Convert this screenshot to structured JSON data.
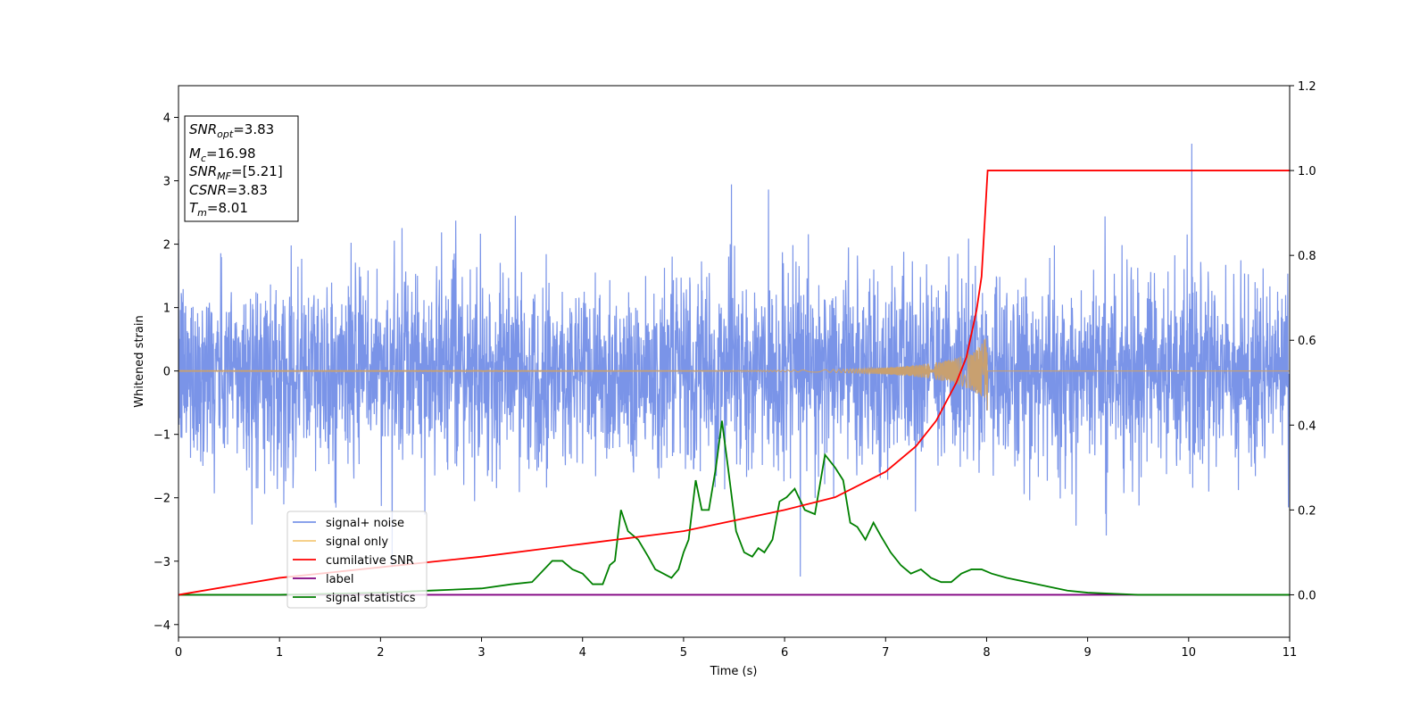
{
  "chart_data": {
    "type": "line",
    "xlabel": "Time (s)",
    "ylabel": "Whitened strain",
    "xlim": [
      0,
      11
    ],
    "ylim": [
      -4.2,
      4.5
    ],
    "y2lim": [
      -0.1,
      1.2
    ],
    "x_ticks": [
      "0",
      "1",
      "2",
      "3",
      "4",
      "5",
      "6",
      "7",
      "8",
      "9",
      "10",
      "11"
    ],
    "y_ticks": [
      "−4",
      "−3",
      "−2",
      "−1",
      "0",
      "1",
      "2",
      "3",
      "4"
    ],
    "y2_ticks": [
      "0.0",
      "0.2",
      "0.4",
      "0.6",
      "0.8",
      "1.0",
      "1.2"
    ],
    "legend_position": "lower-left",
    "info_box": {
      "lines": [
        {
          "sym": "SNR",
          "sub": "opt",
          "rest": "=3.83"
        },
        {
          "sym": "M",
          "sub": "c",
          "rest": "=16.98"
        },
        {
          "sym": "SNR",
          "sub": "MF",
          "rest": "=[5.21]"
        },
        {
          "sym": "CSNR",
          "sub": "",
          "rest": "=3.83"
        },
        {
          "sym": "T",
          "sub": "m",
          "rest": "=8.01"
        }
      ]
    },
    "series": [
      {
        "name": "signal+ noise",
        "color": "#7a94e8",
        "axis": "left",
        "description_stats": {
          "std": 0.75
        }
      },
      {
        "name": "signal only",
        "color": "#f5c97a",
        "axis": "left",
        "merger_time": 8.01,
        "peak_amplitude": 0.65
      },
      {
        "name": "cumilative SNR",
        "color": "#ff0000",
        "axis": "right",
        "x": [
          0,
          1,
          2,
          3,
          4,
          5,
          6,
          6.5,
          7,
          7.3,
          7.5,
          7.7,
          7.8,
          7.9,
          7.95,
          8.01,
          11
        ],
        "y": [
          0.0,
          0.04,
          0.065,
          0.09,
          0.12,
          0.15,
          0.2,
          0.23,
          0.29,
          0.35,
          0.41,
          0.5,
          0.56,
          0.67,
          0.75,
          1.0,
          1.0
        ]
      },
      {
        "name": "label",
        "color": "#800080",
        "axis": "right",
        "x": [
          0,
          11
        ],
        "y": [
          0.0,
          0.0
        ]
      },
      {
        "name": "signal statistics",
        "color": "#008000",
        "axis": "right",
        "x": [
          0,
          1,
          2,
          2.5,
          3,
          3.3,
          3.5,
          3.7,
          3.8,
          3.9,
          4.0,
          4.1,
          4.2,
          4.27,
          4.32,
          4.38,
          4.45,
          4.55,
          4.65,
          4.72,
          4.8,
          4.88,
          4.95,
          5.0,
          5.05,
          5.12,
          5.18,
          5.25,
          5.32,
          5.38,
          5.44,
          5.52,
          5.6,
          5.68,
          5.74,
          5.8,
          5.88,
          5.95,
          6.02,
          6.1,
          6.2,
          6.3,
          6.4,
          6.5,
          6.58,
          6.65,
          6.72,
          6.8,
          6.88,
          6.95,
          7.05,
          7.15,
          7.25,
          7.35,
          7.45,
          7.55,
          7.65,
          7.75,
          7.85,
          7.95,
          8.05,
          8.2,
          8.4,
          8.6,
          8.8,
          9.0,
          9.5,
          10.0,
          11.0
        ],
        "y": [
          0.0,
          0.0,
          0.005,
          0.01,
          0.015,
          0.025,
          0.03,
          0.08,
          0.08,
          0.06,
          0.05,
          0.025,
          0.025,
          0.07,
          0.08,
          0.2,
          0.15,
          0.13,
          0.09,
          0.06,
          0.05,
          0.04,
          0.06,
          0.1,
          0.13,
          0.27,
          0.2,
          0.2,
          0.3,
          0.41,
          0.3,
          0.15,
          0.1,
          0.09,
          0.11,
          0.1,
          0.13,
          0.22,
          0.23,
          0.25,
          0.2,
          0.19,
          0.33,
          0.3,
          0.27,
          0.17,
          0.16,
          0.13,
          0.17,
          0.14,
          0.1,
          0.07,
          0.05,
          0.06,
          0.04,
          0.03,
          0.03,
          0.05,
          0.06,
          0.06,
          0.05,
          0.04,
          0.03,
          0.02,
          0.01,
          0.005,
          0.0,
          0.0,
          0.0
        ]
      }
    ]
  }
}
